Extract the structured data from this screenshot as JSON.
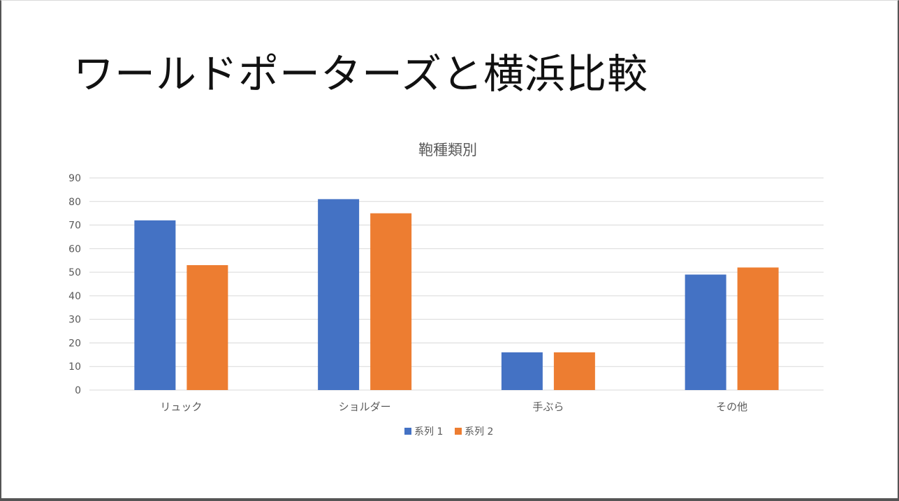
{
  "slide": {
    "title": "ワールドポーターズと横浜比較"
  },
  "chart_data": {
    "type": "bar",
    "title": "鞄種類別",
    "categories": [
      "リュック",
      "ショルダー",
      "手ぶら",
      "その他"
    ],
    "series": [
      {
        "name": "系列 1",
        "color": "#4472C4",
        "values": [
          72,
          81,
          16,
          49
        ]
      },
      {
        "name": "系列 2",
        "color": "#ED7D31",
        "values": [
          53,
          75,
          16,
          52
        ]
      }
    ],
    "ylim": [
      0,
      90
    ],
    "yticks": [
      0,
      10,
      20,
      30,
      40,
      50,
      60,
      70,
      80,
      90
    ],
    "grid": true,
    "legend": "bottom"
  }
}
